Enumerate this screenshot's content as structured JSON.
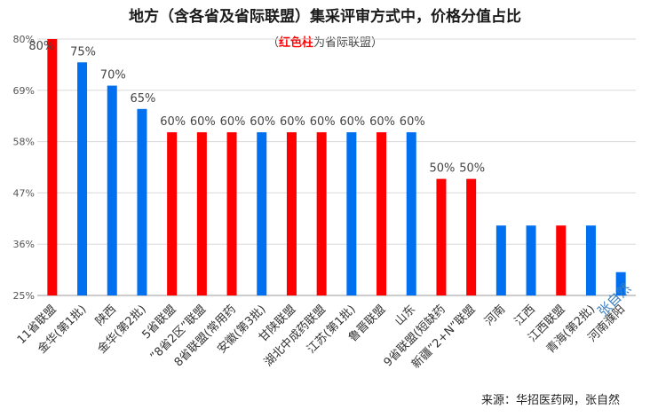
{
  "title": "地方（含各省及省际联盟）集采评审方式中，价格分值占比",
  "subtitle_open": "（",
  "subtitle_red": "红色柱",
  "subtitle_rest": "为省际联盟）",
  "source": "来源：华招医药网，张自然",
  "watermark": "张自然",
  "colors": {
    "alliance": "#ff0000",
    "province": "#0070f0"
  },
  "chart_data": {
    "type": "bar",
    "title": "地方（含各省及省际联盟）集采评审方式中，价格分值占比",
    "ylim": [
      25,
      80
    ],
    "yticks": [
      "25%",
      "36%",
      "47%",
      "58%",
      "69%",
      "80%"
    ],
    "grid": true,
    "legend": "none",
    "categories": [
      "11省联盟",
      "金华(第1批)",
      "陕西",
      "金华(第2批)",
      "5省联盟",
      "”8省2区”联盟",
      "8省联盟(常用药",
      "安徽(第3批)",
      "甘陕联盟",
      "湖北中成药联盟",
      "江苏(第1批)",
      "鲁晋联盟",
      "山东",
      "9省联盟(短缺药",
      "新疆”2+N”联盟",
      "河南",
      "江西",
      "江西联盟",
      "青海(第2批)",
      "河南濮阳"
    ],
    "values": [
      80,
      75,
      70,
      65,
      60,
      60,
      60,
      60,
      60,
      60,
      60,
      60,
      60,
      50,
      50,
      40,
      40,
      40,
      40,
      30
    ],
    "value_labels": [
      "80%",
      "75%",
      "70%",
      "65%",
      "60%",
      "60%",
      "60%",
      "60%",
      "60%",
      "60%",
      "60%",
      "60%",
      "60%",
      "50%",
      "50%",
      "",
      "",
      "",
      "",
      ""
    ],
    "is_alliance": [
      true,
      false,
      false,
      false,
      true,
      true,
      true,
      false,
      true,
      true,
      false,
      true,
      false,
      true,
      true,
      false,
      false,
      true,
      false,
      false
    ]
  }
}
